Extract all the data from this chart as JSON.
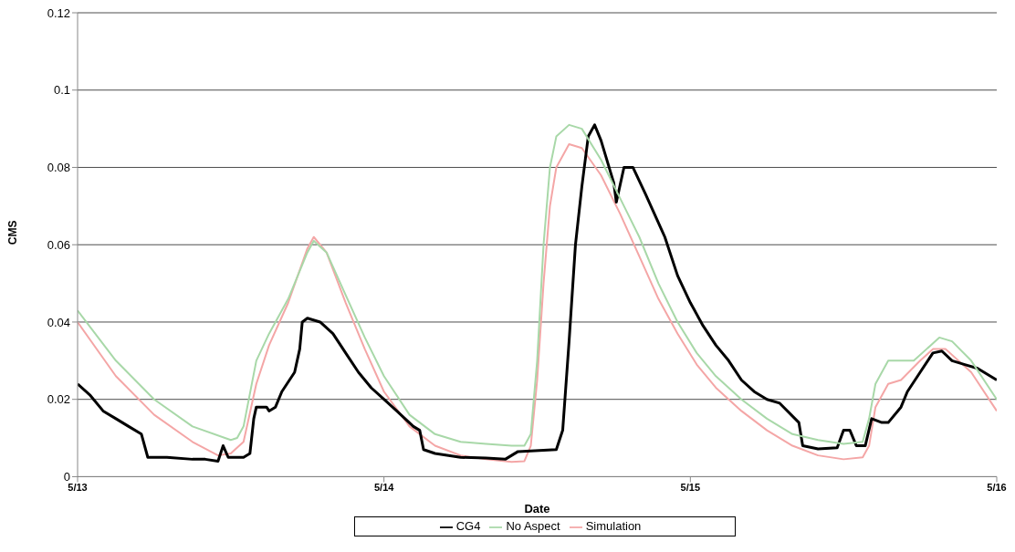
{
  "chart_data": {
    "type": "line",
    "xlabel": "Date",
    "ylabel": "CMS",
    "xlim": [
      "--05-13",
      "--05-16"
    ],
    "xticks": [
      {
        "value": "--05-13",
        "label": "5/13"
      },
      {
        "value": "--05-14",
        "label": "5/14"
      },
      {
        "value": "--05-15",
        "label": "5/15"
      },
      {
        "value": "--05-16",
        "label": "5/16"
      }
    ],
    "ylim": [
      0,
      0.12
    ],
    "yticks": [
      0,
      0.02,
      0.04,
      0.06,
      0.08,
      0.1,
      0.12
    ],
    "grid": "y",
    "legend": "bottom",
    "marker": "none",
    "line_style": "solid",
    "series": [
      {
        "name": "Simulation",
        "color": "#f4a6a6",
        "x": [
          "--05-13T00:00",
          "--05-13T03:00",
          "--05-13T06:00",
          "--05-13T09:00",
          "--05-13T11:00",
          "--05-13T12:00",
          "--05-13T13:00",
          "--05-13T14:00",
          "--05-13T15:00",
          "--05-13T16:30",
          "--05-13T18:00",
          "--05-13T18:30",
          "--05-13T19:30",
          "--05-13T21:00",
          "--05-13T22:30",
          "--05-14T00:00",
          "--05-14T02:00",
          "--05-14T04:00",
          "--05-14T06:00",
          "--05-14T08:00",
          "--05-14T10:00",
          "--05-14T11:00",
          "--05-14T11:30",
          "--05-14T12:00",
          "--05-14T12:30",
          "--05-14T13:00",
          "--05-14T13:30",
          "--05-14T14:30",
          "--05-14T15:30",
          "--05-14T17:00",
          "--05-14T18:30",
          "--05-14T20:00",
          "--05-14T21:30",
          "--05-14T23:00",
          "--05-15T00:30",
          "--05-15T02:00",
          "--05-15T04:00",
          "--05-15T06:00",
          "--05-15T08:00",
          "--05-15T10:00",
          "--05-15T12:00",
          "--05-15T13:30",
          "--05-15T14:00",
          "--05-15T14:30",
          "--05-15T15:30",
          "--05-15T16:30",
          "--05-15T18:00",
          "--05-15T19:00",
          "--05-15T20:00",
          "--05-15T22:00",
          "--05-16T00:00"
        ],
        "values": [
          0.04,
          0.026,
          0.016,
          0.009,
          0.0055,
          0.006,
          0.009,
          0.024,
          0.034,
          0.045,
          0.059,
          0.062,
          0.058,
          0.045,
          0.033,
          0.022,
          0.013,
          0.008,
          0.0055,
          0.0045,
          0.0038,
          0.004,
          0.008,
          0.025,
          0.05,
          0.07,
          0.08,
          0.086,
          0.085,
          0.078,
          0.068,
          0.057,
          0.046,
          0.037,
          0.029,
          0.023,
          0.017,
          0.012,
          0.008,
          0.0055,
          0.0045,
          0.005,
          0.008,
          0.018,
          0.024,
          0.025,
          0.03,
          0.033,
          0.033,
          0.027,
          0.017
        ]
      },
      {
        "name": "CG4",
        "color": "#000000",
        "x": [
          "--05-13T00:00",
          "--05-13T01:00",
          "--05-13T02:00",
          "--05-13T03:00",
          "--05-13T04:00",
          "--05-13T05:00",
          "--05-13T05:30",
          "--05-13T07:00",
          "--05-13T09:00",
          "--05-13T10:00",
          "--05-13T11:00",
          "--05-13T11:24",
          "--05-13T11:48",
          "--05-13T13:00",
          "--05-13T13:30",
          "--05-13T13:48",
          "--05-13T14:00",
          "--05-13T14:48",
          "--05-13T15:00",
          "--05-13T15:30",
          "--05-13T16:00",
          "--05-13T17:00",
          "--05-13T17:24",
          "--05-13T17:36",
          "--05-13T18:00",
          "--05-13T19:00",
          "--05-13T20:00",
          "--05-13T21:00",
          "--05-13T22:00",
          "--05-13T23:00",
          "--05-14T00:00",
          "--05-14T01:00",
          "--05-14T02:18",
          "--05-14T02:48",
          "--05-14T03:06",
          "--05-14T04:00",
          "--05-14T06:00",
          "--05-14T08:00",
          "--05-14T09:30",
          "--05-14T10:30",
          "--05-14T13:30",
          "--05-14T14:00",
          "--05-14T14:30",
          "--05-14T15:00",
          "--05-14T15:30",
          "--05-14T16:00",
          "--05-14T16:30",
          "--05-14T17:00",
          "--05-14T18:00",
          "--05-14T18:12",
          "--05-14T18:48",
          "--05-14T19:30",
          "--05-14T20:30",
          "--05-14T22:00",
          "--05-14T23:00",
          "--05-15T00:00",
          "--05-15T01:00",
          "--05-15T02:00",
          "--05-15T03:00",
          "--05-15T04:00",
          "--05-15T05:00",
          "--05-15T06:00",
          "--05-15T07:00",
          "--05-15T08:30",
          "--05-15T08:48",
          "--05-15T10:00",
          "--05-15T11:30",
          "--05-15T12:00",
          "--05-15T12:30",
          "--05-15T13:00",
          "--05-15T13:42",
          "--05-15T14:12",
          "--05-15T15:00",
          "--05-15T15:30",
          "--05-15T16:30",
          "--05-15T17:00",
          "--05-15T18:00",
          "--05-15T19:00",
          "--05-15T19:42",
          "--05-15T20:30",
          "--05-15T21:30",
          "--05-15T22:30",
          "--05-15T23:30",
          "--05-16T00:00"
        ],
        "values": [
          0.024,
          0.021,
          0.017,
          0.015,
          0.013,
          0.011,
          0.005,
          0.005,
          0.0045,
          0.0045,
          0.004,
          0.008,
          0.005,
          0.005,
          0.006,
          0.015,
          0.018,
          0.018,
          0.017,
          0.018,
          0.022,
          0.027,
          0.033,
          0.04,
          0.041,
          0.04,
          0.037,
          0.032,
          0.027,
          0.023,
          0.02,
          0.017,
          0.013,
          0.012,
          0.007,
          0.006,
          0.005,
          0.0048,
          0.0045,
          0.0065,
          0.007,
          0.012,
          0.035,
          0.06,
          0.075,
          0.088,
          0.091,
          0.087,
          0.076,
          0.071,
          0.08,
          0.08,
          0.073,
          0.062,
          0.052,
          0.045,
          0.039,
          0.034,
          0.03,
          0.025,
          0.022,
          0.02,
          0.019,
          0.014,
          0.008,
          0.0072,
          0.0075,
          0.012,
          0.012,
          0.008,
          0.008,
          0.015,
          0.014,
          0.014,
          0.018,
          0.022,
          0.027,
          0.032,
          0.0325,
          0.03,
          0.029,
          0.028,
          0.026,
          0.025
        ]
      },
      {
        "name": "No Aspect",
        "color": "#a8d8a8",
        "x": [
          "--05-13T00:00",
          "--05-13T03:00",
          "--05-13T06:00",
          "--05-13T09:00",
          "--05-13T12:00",
          "--05-13T12:30",
          "--05-13T13:00",
          "--05-13T14:00",
          "--05-13T15:00",
          "--05-13T16:30",
          "--05-13T18:00",
          "--05-13T18:30",
          "--05-13T19:30",
          "--05-13T21:00",
          "--05-13T22:30",
          "--05-14T00:00",
          "--05-14T02:00",
          "--05-14T04:00",
          "--05-14T06:00",
          "--05-14T08:00",
          "--05-14T10:00",
          "--05-14T11:00",
          "--05-14T11:30",
          "--05-14T12:00",
          "--05-14T12:30",
          "--05-14T13:00",
          "--05-14T13:30",
          "--05-14T14:30",
          "--05-14T15:30",
          "--05-14T17:00",
          "--05-14T18:30",
          "--05-14T20:00",
          "--05-14T21:30",
          "--05-14T23:00",
          "--05-15T00:30",
          "--05-15T02:00",
          "--05-15T04:00",
          "--05-15T06:00",
          "--05-15T08:00",
          "--05-15T10:00",
          "--05-15T12:00",
          "--05-15T13:30",
          "--05-15T14:00",
          "--05-15T14:30",
          "--05-15T15:30",
          "--05-15T16:30",
          "--05-15T17:30",
          "--05-15T18:30",
          "--05-15T19:30",
          "--05-15T20:30",
          "--05-15T22:00",
          "--05-16T00:00"
        ],
        "values": [
          0.043,
          0.03,
          0.02,
          0.013,
          0.0095,
          0.01,
          0.013,
          0.03,
          0.037,
          0.046,
          0.058,
          0.061,
          0.058,
          0.047,
          0.036,
          0.026,
          0.016,
          0.011,
          0.009,
          0.0085,
          0.008,
          0.008,
          0.011,
          0.03,
          0.06,
          0.08,
          0.088,
          0.091,
          0.09,
          0.082,
          0.072,
          0.062,
          0.05,
          0.04,
          0.032,
          0.026,
          0.02,
          0.015,
          0.011,
          0.0095,
          0.0085,
          0.009,
          0.015,
          0.024,
          0.03,
          0.03,
          0.03,
          0.033,
          0.036,
          0.035,
          0.03,
          0.02
        ]
      }
    ]
  }
}
